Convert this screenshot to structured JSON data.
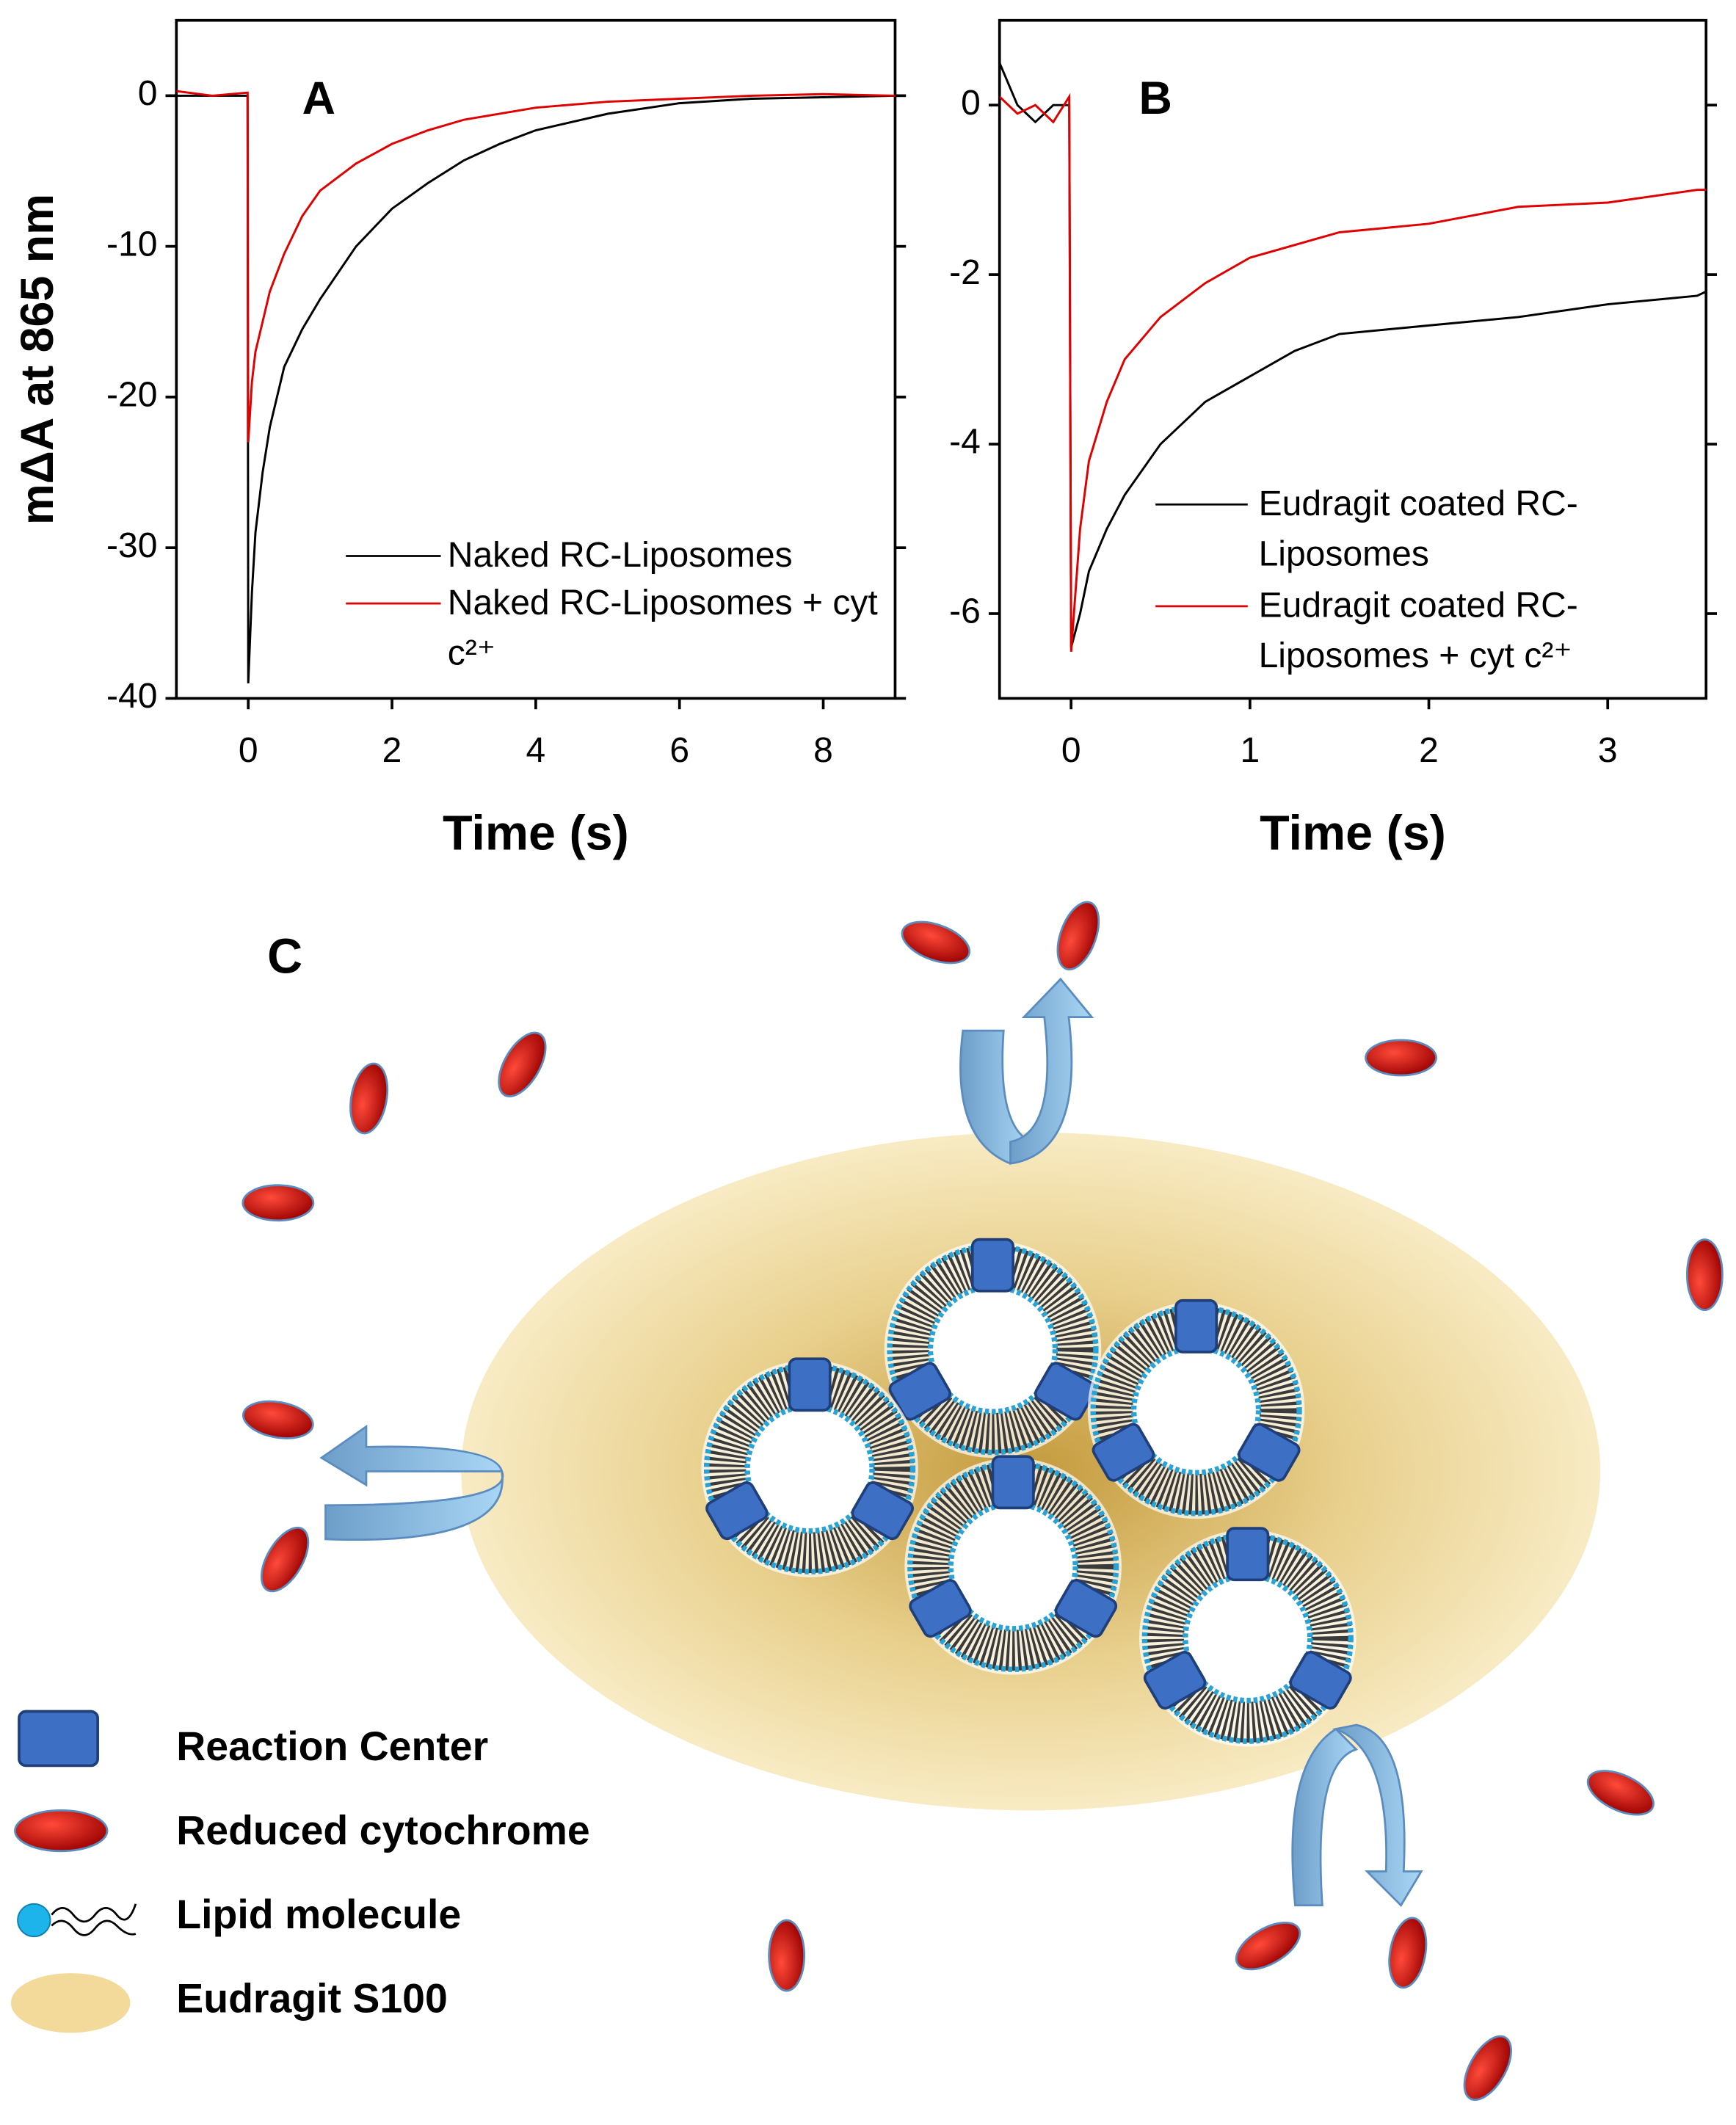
{
  "chart_data": [
    {
      "type": "line",
      "panel": "A",
      "ylabel": "mΔA at 865 nm",
      "xlabel": "Time (s)",
      "xlim": [
        -1,
        9
      ],
      "ylim": [
        5,
        -40
      ],
      "xticks": [
        0,
        2,
        4,
        6,
        8
      ],
      "yticks": [
        0,
        -10,
        -20,
        -30,
        -40
      ],
      "series": [
        {
          "name": "Naked RC-Liposomes",
          "color": "#000000",
          "x": [
            -1,
            -0.5,
            -0.01,
            0,
            0.05,
            0.1,
            0.2,
            0.3,
            0.5,
            0.75,
            1,
            1.5,
            2,
            2.5,
            3,
            3.5,
            4,
            5,
            6,
            7,
            8,
            9
          ],
          "values": [
            0,
            0,
            0,
            -39,
            -33,
            -29,
            -25,
            -22,
            -18,
            -15.5,
            -13.5,
            -10,
            -7.5,
            -5.8,
            -4.3,
            -3.2,
            -2.3,
            -1.2,
            -0.5,
            -0.2,
            -0.1,
            0
          ]
        },
        {
          "name": "Naked RC-Liposomes + cyt c²⁺",
          "color": "#e00000",
          "x": [
            -1,
            -0.5,
            -0.01,
            0,
            0.05,
            0.1,
            0.2,
            0.3,
            0.5,
            0.75,
            1,
            1.5,
            2,
            2.5,
            3,
            4,
            5,
            6,
            7,
            8,
            9
          ],
          "values": [
            0.3,
            0,
            0.2,
            -23,
            -19,
            -17,
            -15,
            -13,
            -10.5,
            -8,
            -6.3,
            -4.5,
            -3.2,
            -2.3,
            -1.6,
            -0.8,
            -0.4,
            -0.2,
            0,
            0.1,
            0
          ]
        }
      ]
    },
    {
      "type": "line",
      "panel": "B",
      "xlabel": "Time (s)",
      "xlim": [
        -0.4,
        3.55
      ],
      "ylim": [
        1,
        -7
      ],
      "xticks": [
        0,
        1,
        2,
        3
      ],
      "yticks": [
        0,
        -2,
        -4,
        -6
      ],
      "series": [
        {
          "name": "Eudragit coated RC-Liposomes",
          "color": "#000000",
          "x": [
            -0.4,
            -0.3,
            -0.2,
            -0.1,
            -0.01,
            0,
            0.05,
            0.1,
            0.2,
            0.3,
            0.5,
            0.75,
            1,
            1.25,
            1.5,
            2,
            2.5,
            3,
            3.5,
            3.55
          ],
          "values": [
            0.5,
            0,
            -0.2,
            0,
            0,
            -6.4,
            -6,
            -5.5,
            -5,
            -4.6,
            -4,
            -3.5,
            -3.2,
            -2.9,
            -2.7,
            -2.6,
            -2.5,
            -2.35,
            -2.25,
            -2.2
          ]
        },
        {
          "name": "Eudragit coated RC-Liposomes + cyt c²⁺",
          "color": "#e00000",
          "x": [
            -0.4,
            -0.3,
            -0.2,
            -0.1,
            -0.01,
            0,
            0.05,
            0.1,
            0.2,
            0.3,
            0.5,
            0.75,
            1,
            1.5,
            2,
            2.5,
            3,
            3.5,
            3.55
          ],
          "values": [
            0.1,
            -0.1,
            0,
            -0.2,
            0.1,
            -6.45,
            -5,
            -4.2,
            -3.5,
            -3,
            -2.5,
            -2.1,
            -1.8,
            -1.5,
            -1.4,
            -1.2,
            -1.15,
            -1.0,
            -1.0
          ]
        }
      ]
    }
  ],
  "diagram": {
    "label": "C",
    "legend": [
      "Reaction Center",
      "Reduced cytochrome",
      "Lipid molecule",
      "Eudragit S100"
    ]
  }
}
